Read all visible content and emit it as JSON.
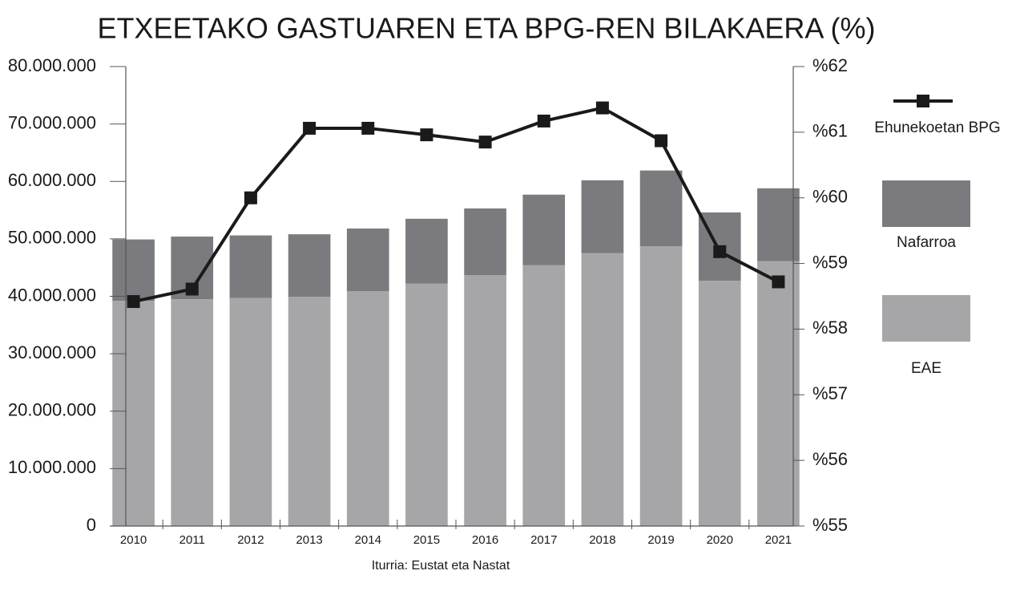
{
  "chart_data": {
    "type": "bar",
    "title": "ETXEETAKO GASTUAREN ETA BPG-REN BILAKAERA (%)",
    "source": "Iturria: Eustat eta Nastat",
    "categories": [
      "2010",
      "2011",
      "2012",
      "2013",
      "2014",
      "2015",
      "2016",
      "2017",
      "2018",
      "2019",
      "2020",
      "2021"
    ],
    "stacked": true,
    "series": [
      {
        "name": "EAE",
        "color": "#a6a6a9",
        "values": [
          39200000,
          39500000,
          39700000,
          39900000,
          40900000,
          42200000,
          43700000,
          45400000,
          47500000,
          48700000,
          42700000,
          46100000
        ]
      },
      {
        "name": "Nafarroa",
        "color": "#7b7b7f",
        "values": [
          10700000,
          10900000,
          10900000,
          10900000,
          10900000,
          11300000,
          11600000,
          12300000,
          12700000,
          13200000,
          11900000,
          12700000
        ]
      },
      {
        "name": "Ehunekoetan BPG",
        "type": "line",
        "axis": "y2",
        "color": "#1a1a1a",
        "values": [
          58.42,
          58.61,
          60.0,
          61.06,
          61.06,
          60.96,
          60.85,
          61.17,
          61.37,
          60.87,
          59.18,
          58.72
        ]
      }
    ],
    "ylim": [
      0,
      80000000
    ],
    "yticks": [
      0,
      {
        "value": 10000000,
        "label": "10.000.000"
      },
      {
        "value": 20000000,
        "label": "20.000.000"
      },
      {
        "value": 30000000,
        "label": "30.000.000"
      },
      {
        "value": 40000000,
        "label": "40.000.000"
      },
      {
        "value": 50000000,
        "label": "50.000.000"
      },
      {
        "value": 60000000,
        "label": "60.000.000"
      },
      {
        "value": 70000000,
        "label": "70.000.000"
      },
      {
        "value": 80000000,
        "label": "80.000.000"
      }
    ],
    "y2lim": [
      55,
      62
    ],
    "y2ticks": [
      {
        "value": 55,
        "label": "%55"
      },
      {
        "value": 56,
        "label": "%56"
      },
      {
        "value": 57,
        "label": "%57"
      },
      {
        "value": 58,
        "label": "%58"
      },
      {
        "value": 59,
        "label": "%59"
      },
      {
        "value": 60,
        "label": "%60"
      },
      {
        "value": 61,
        "label": "%61"
      },
      {
        "value": 62,
        "label": "%62"
      }
    ],
    "grid": false,
    "legend": "right"
  }
}
